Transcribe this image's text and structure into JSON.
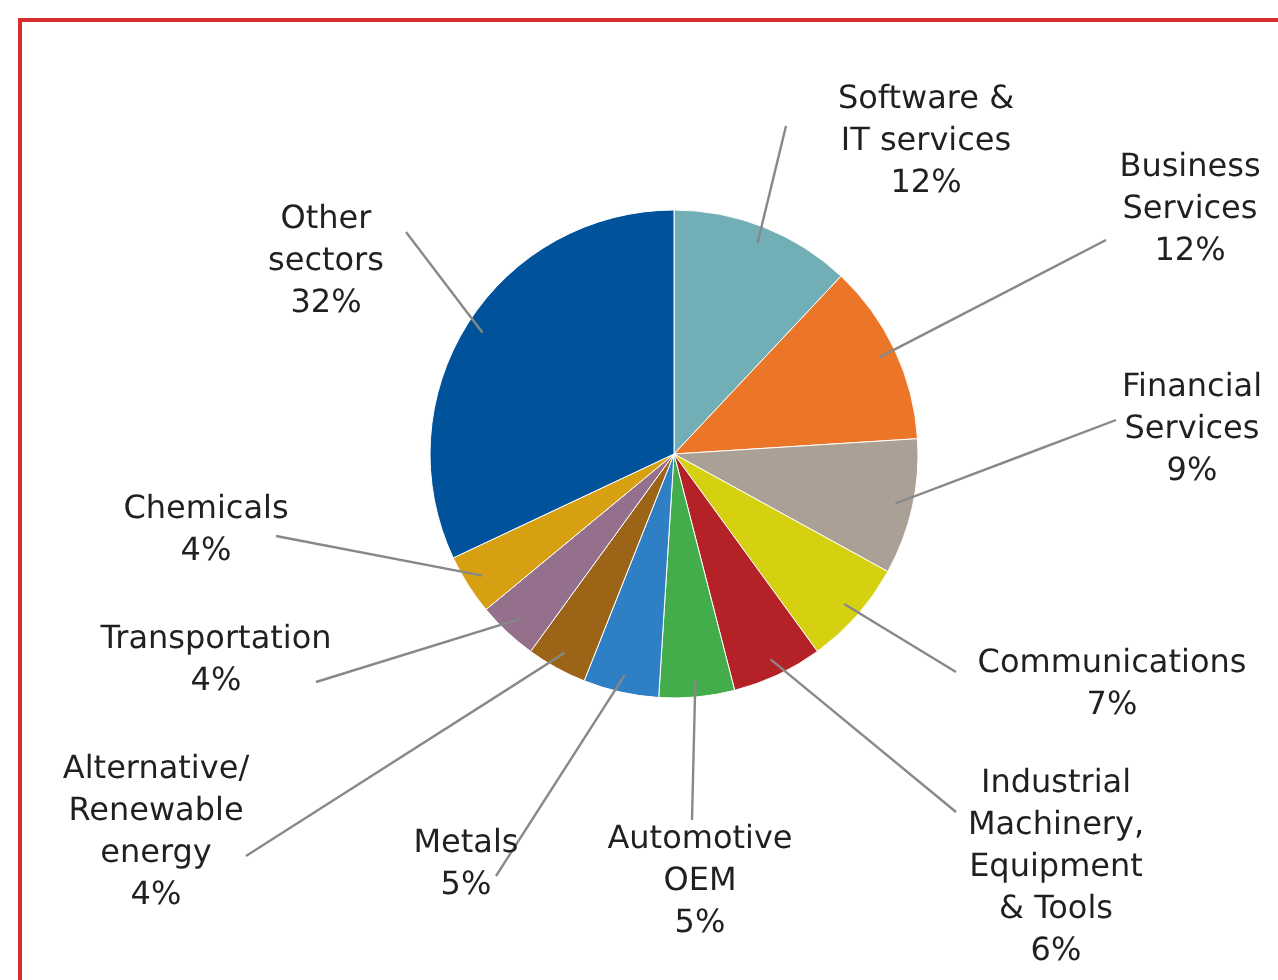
{
  "chart_data": {
    "type": "pie",
    "categories": [
      "Software &\nIT services",
      "Business\nServices",
      "Financial\nServices",
      "Communications",
      "Industrial\nMachinery,\nEquipment\n& Tools",
      "Automotive\nOEM",
      "Metals",
      "Alternative/\nRenewable\nenergy",
      "Transportation",
      "Chemicals",
      "Other\nsectors"
    ],
    "values": [
      12,
      12,
      9,
      7,
      6,
      5,
      5,
      4,
      4,
      4,
      32
    ],
    "value_labels": [
      "12%",
      "12%",
      "9%",
      "7%",
      "6%",
      "5%",
      "5%",
      "4%",
      "4%",
      "4%",
      "32%"
    ],
    "colors": [
      "#72aeb6",
      "#ec7628",
      "#aaa095",
      "#d6d110",
      "#b42127",
      "#42ad4a",
      "#2e7fc3",
      "#9c6416",
      "#94708c",
      "#d6a012",
      "#00529b"
    ]
  }
}
